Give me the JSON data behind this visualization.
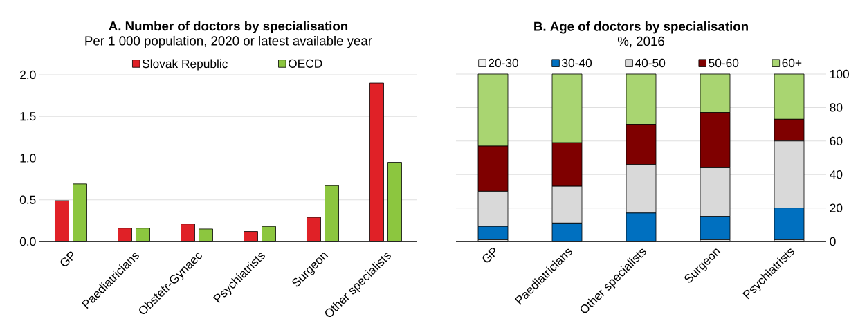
{
  "chart_data": [
    {
      "type": "bar",
      "title": "A. Number of doctors by specialisation",
      "subtitle": "Per 1 000 population, 2020 or latest available year",
      "categories": [
        "GP",
        "Paediatricians",
        "Obstetr-Gynaec",
        "Psychiatrists",
        "Surgeon",
        "Other specialists"
      ],
      "series": [
        {
          "name": "Slovak Republic",
          "color": "#e02127",
          "values": [
            0.49,
            0.16,
            0.21,
            0.12,
            0.29,
            1.9
          ]
        },
        {
          "name": "OECD",
          "color": "#8cc63f",
          "values": [
            0.69,
            0.16,
            0.15,
            0.18,
            0.67,
            0.95
          ]
        }
      ],
      "ylim": [
        0,
        2.0
      ],
      "yticks": [
        {
          "value": 0,
          "label": "0.0"
        },
        0.5,
        {
          "value": 1,
          "label": "1.0"
        },
        1.5,
        {
          "value": 2,
          "label": "2.0"
        }
      ],
      "grid": "y",
      "legend": "top"
    },
    {
      "type": "bar",
      "stacked": true,
      "title": "B. Age of doctors by specialisation",
      "subtitle": "%, 2016",
      "categories": [
        "GP",
        "Paediatricians",
        "Other specialists",
        "Surgeon",
        "Psychiatrists"
      ],
      "series": [
        {
          "name": "20-30",
          "color": "#f2f2f2",
          "values": [
            1,
            0,
            0,
            1,
            1
          ]
        },
        {
          "name": "30-40",
          "color": "#0070c0",
          "values": [
            8,
            11,
            17,
            14,
            19
          ]
        },
        {
          "name": "40-50",
          "color": "#d9d9d9",
          "values": [
            21,
            22,
            29,
            29,
            40
          ]
        },
        {
          "name": "50-60",
          "color": "#7f0000",
          "values": [
            27,
            26,
            24,
            33,
            13
          ]
        },
        {
          "name": "60+",
          "color": "#a9d571",
          "values": [
            43,
            41,
            30,
            23,
            27
          ]
        }
      ],
      "ylim": [
        0,
        100
      ],
      "yticks": [
        0,
        20,
        40,
        60,
        80,
        100
      ],
      "grid": "y",
      "legend": "top"
    }
  ]
}
